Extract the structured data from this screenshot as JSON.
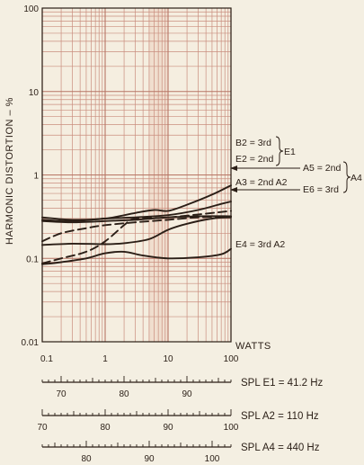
{
  "chart_data": {
    "type": "line",
    "xscale": "log",
    "yscale": "log",
    "xlim": [
      0.1,
      100
    ],
    "ylim": [
      0.01,
      100
    ],
    "grid": true,
    "xlabel": "WATTS",
    "ylabel": "HARMONIC DISTORTION – %",
    "x_ticks": [
      "0.1",
      "1",
      "10",
      "100"
    ],
    "y_ticks": [
      "0.01",
      "0.1",
      "1",
      "10",
      "100"
    ],
    "series": [
      {
        "name": "B2 = 3rd",
        "style": "solid",
        "points": [
          [
            0.1,
            0.31
          ],
          [
            0.3,
            0.29
          ],
          [
            1,
            0.3
          ],
          [
            3,
            0.35
          ],
          [
            6,
            0.38
          ],
          [
            10,
            0.37
          ],
          [
            20,
            0.44
          ],
          [
            50,
            0.58
          ],
          [
            100,
            0.75
          ]
        ]
      },
      {
        "name": "E2 = 2nd",
        "style": "solid",
        "points": [
          [
            0.1,
            0.29
          ],
          [
            0.3,
            0.28
          ],
          [
            1,
            0.3
          ],
          [
            3,
            0.31
          ],
          [
            10,
            0.33
          ],
          [
            30,
            0.38
          ],
          [
            70,
            0.45
          ],
          [
            100,
            0.48
          ]
        ]
      },
      {
        "name": "A3 = 2nd A2",
        "style": "solid",
        "points": [
          [
            0.1,
            0.28
          ],
          [
            0.3,
            0.27
          ],
          [
            1,
            0.28
          ],
          [
            3,
            0.29
          ],
          [
            10,
            0.31
          ],
          [
            30,
            0.32
          ],
          [
            100,
            0.32
          ]
        ]
      },
      {
        "name": "A5 = 2nd",
        "style": "dashed",
        "points": [
          [
            0.1,
            0.087
          ],
          [
            0.2,
            0.1
          ],
          [
            0.5,
            0.12
          ],
          [
            1,
            0.16
          ],
          [
            2,
            0.25
          ],
          [
            3,
            0.3
          ],
          [
            10,
            0.31
          ],
          [
            100,
            0.37
          ]
        ]
      },
      {
        "name": "E6 = 3rd",
        "style": "dashed",
        "points": [
          [
            0.1,
            0.16
          ],
          [
            0.2,
            0.2
          ],
          [
            0.5,
            0.23
          ],
          [
            1,
            0.25
          ],
          [
            3,
            0.27
          ],
          [
            10,
            0.29
          ],
          [
            30,
            0.31
          ],
          [
            100,
            0.32
          ]
        ]
      },
      {
        "name": "",
        "style": "solid",
        "points": [
          [
            0.1,
            0.145
          ],
          [
            0.3,
            0.15
          ],
          [
            1,
            0.148
          ],
          [
            2,
            0.152
          ],
          [
            5,
            0.17
          ],
          [
            10,
            0.22
          ],
          [
            20,
            0.26
          ],
          [
            50,
            0.3
          ],
          [
            100,
            0.31
          ]
        ]
      },
      {
        "name": "E4 = 3rd A2",
        "style": "solid",
        "points": [
          [
            0.1,
            0.085
          ],
          [
            0.2,
            0.09
          ],
          [
            0.5,
            0.1
          ],
          [
            1,
            0.115
          ],
          [
            2,
            0.12
          ],
          [
            4,
            0.108
          ],
          [
            10,
            0.1
          ],
          [
            30,
            0.103
          ],
          [
            70,
            0.112
          ],
          [
            100,
            0.13
          ]
        ]
      }
    ],
    "labels": {
      "b2": "B2 = 3rd",
      "e2": "E2 = 2nd",
      "e1": "E1",
      "a5": "A5 = 2nd",
      "a3": "A3 = 2nd A2",
      "e6": "E6 = 3rd",
      "a4": "A4",
      "e4": "E4 = 3rd A2"
    },
    "spl_scales": [
      {
        "label": "SPL E1 = 41.2 Hz",
        "range": [
          67,
          97
        ],
        "ticks": [
          "70",
          "80",
          "90"
        ]
      },
      {
        "label": "SPL A2 = 110 Hz",
        "range": [
          70,
          100
        ],
        "ticks": [
          "70",
          "80",
          "90",
          "100"
        ]
      },
      {
        "label": "SPL A4 = 440 Hz",
        "range": [
          73,
          103
        ],
        "ticks": [
          "80",
          "90",
          "100"
        ]
      }
    ],
    "colors": {
      "curve": "#2a1e16",
      "grid": "#c98d7e",
      "background": "#f4efe2"
    }
  }
}
